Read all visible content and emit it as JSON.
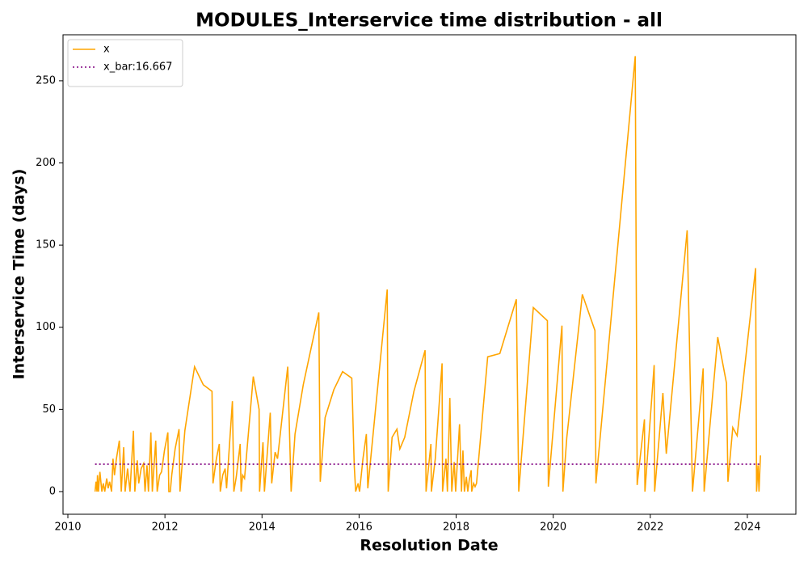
{
  "chart_data": {
    "type": "line",
    "title": "MODULES_Interservice time distribution - all",
    "xlabel": "Resolution Date",
    "ylabel": "Interservice Time (days)",
    "xlim": [
      2009.9,
      2025.0
    ],
    "xticks": [
      2010,
      2012,
      2014,
      2016,
      2018,
      2020,
      2022,
      2024
    ],
    "ylim": [
      -13.8,
      278
    ],
    "yticks": [
      0,
      50,
      100,
      150,
      200,
      250
    ],
    "legend": "upper left",
    "series": [
      {
        "name": "x",
        "color": "orange",
        "linestyle": "solid",
        "x": [
          2010.56,
          2010.58,
          2010.6,
          2010.61,
          2010.63,
          2010.66,
          2010.7,
          2010.73,
          2010.76,
          2010.8,
          2010.83,
          2010.86,
          2010.9,
          2010.93,
          2010.96,
          2011.0,
          2011.06,
          2011.1,
          2011.15,
          2011.18,
          2011.23,
          2011.28,
          2011.35,
          2011.38,
          2011.43,
          2011.46,
          2011.51,
          2011.56,
          2011.59,
          2011.63,
          2011.66,
          2011.71,
          2011.74,
          2011.81,
          2011.84,
          2011.89,
          2011.93,
          2011.99,
          2012.06,
          2012.08,
          2012.11,
          2012.14,
          2012.21,
          2012.29,
          2012.31,
          2012.41,
          2012.61,
          2012.79,
          2012.97,
          2012.99,
          2013.06,
          2013.12,
          2013.14,
          2013.19,
          2013.24,
          2013.27,
          2013.39,
          2013.42,
          2013.47,
          2013.55,
          2013.57,
          2013.6,
          2013.64,
          2013.82,
          2013.94,
          2013.95,
          2014.02,
          2014.05,
          2014.17,
          2014.2,
          2014.27,
          2014.32,
          2014.53,
          2014.6,
          2014.68,
          2014.85,
          2015.17,
          2015.2,
          2015.3,
          2015.48,
          2015.66,
          2015.85,
          2015.9,
          2015.93,
          2015.98,
          2016.01,
          2016.08,
          2016.15,
          2016.18,
          2016.58,
          2016.6,
          2016.68,
          2016.78,
          2016.84,
          2016.94,
          2017.13,
          2017.36,
          2017.38,
          2017.48,
          2017.49,
          2017.57,
          2017.71,
          2017.72,
          2017.79,
          2017.82,
          2017.87,
          2017.91,
          2017.96,
          2017.99,
          2018.07,
          2018.11,
          2018.14,
          2018.17,
          2018.21,
          2018.24,
          2018.27,
          2018.31,
          2018.32,
          2018.36,
          2018.39,
          2018.42,
          2018.65,
          2018.9,
          2019.24,
          2019.29,
          2019.59,
          2019.88,
          2019.9,
          2020.18,
          2020.2,
          2020.28,
          2020.6,
          2020.86,
          2020.88,
          2021.69,
          2021.73,
          2021.74,
          2021.88,
          2021.89,
          2022.08,
          2022.09,
          2022.26,
          2022.33,
          2022.76,
          2022.87,
          2023.09,
          2023.11,
          2023.39,
          2023.57,
          2023.6,
          2023.7,
          2023.79,
          2024.17,
          2024.19,
          2024.22,
          2024.24,
          2024.27
        ],
        "values": [
          0,
          6,
          0,
          10,
          0,
          12,
          0,
          5,
          0,
          8,
          2,
          6,
          0,
          20,
          10,
          20,
          31,
          0,
          27,
          0,
          14,
          0,
          37,
          0,
          19,
          5,
          14,
          17,
          0,
          16,
          0,
          36,
          0,
          31,
          0,
          10,
          12,
          25,
          36,
          0,
          0,
          10,
          26,
          38,
          0,
          37,
          76,
          65,
          61,
          5,
          20,
          29,
          0,
          10,
          14,
          2,
          55,
          0,
          9,
          29,
          0,
          10,
          8,
          70,
          50,
          0,
          30,
          0,
          48,
          5,
          24,
          20,
          76,
          0,
          35,
          65,
          109,
          6,
          45,
          62,
          73,
          69,
          16,
          0,
          5,
          0,
          20,
          35,
          2,
          123,
          0,
          33,
          38,
          26,
          33,
          61,
          86,
          0,
          29,
          0,
          20,
          78,
          0,
          20,
          0,
          57,
          0,
          18,
          0,
          41,
          0,
          25,
          0,
          9,
          0,
          7,
          13,
          0,
          5,
          3,
          5,
          82,
          84,
          117,
          0,
          112,
          104,
          3,
          101,
          0,
          33,
          120,
          98,
          5,
          265,
          4,
          7,
          44,
          0,
          77,
          0,
          60,
          23,
          159,
          0,
          75,
          0,
          94,
          66,
          6,
          39,
          34,
          136,
          0,
          16,
          0,
          22
        ]
      },
      {
        "name": "x_bar:16.667",
        "color": "purple",
        "linestyle": "dotted",
        "x": [
          2010.56,
          2024.27
        ],
        "values": [
          16.667,
          16.667
        ]
      }
    ]
  }
}
